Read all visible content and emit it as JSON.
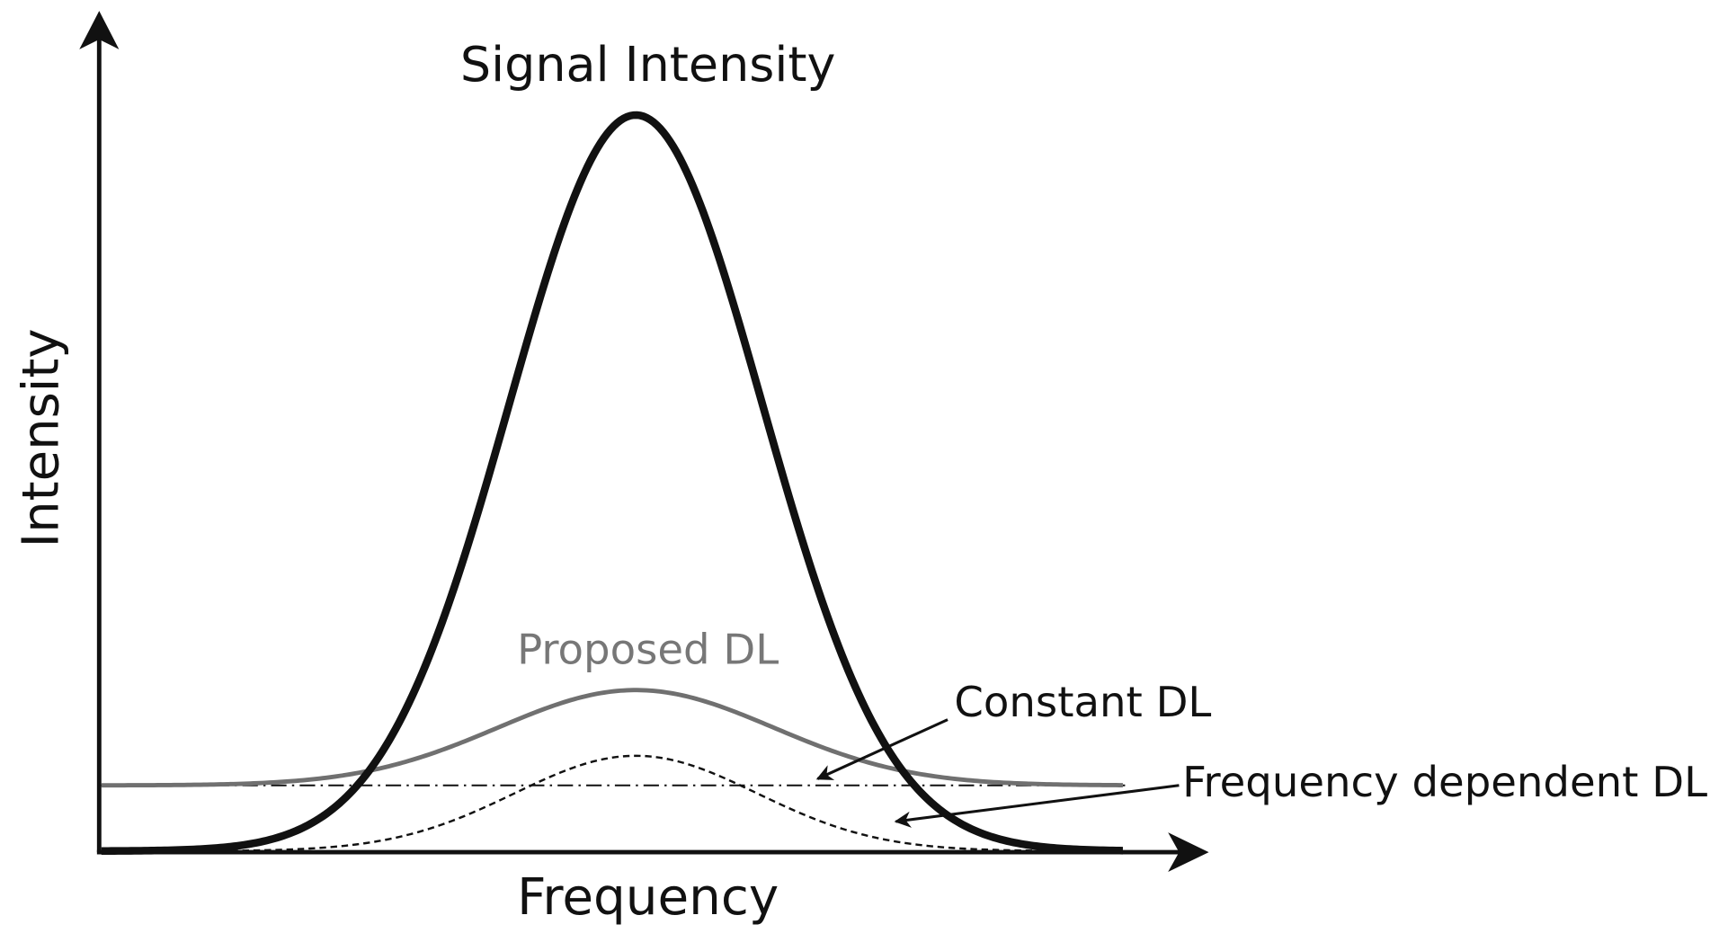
{
  "axes": {
    "x_label": "Frequency",
    "y_label": "Intensity"
  },
  "curves": [
    {
      "label": "Signal Intensity"
    },
    {
      "label": "Proposed DL"
    },
    {
      "label": "Constant DL"
    },
    {
      "label": "Frequency dependent DL"
    }
  ]
}
